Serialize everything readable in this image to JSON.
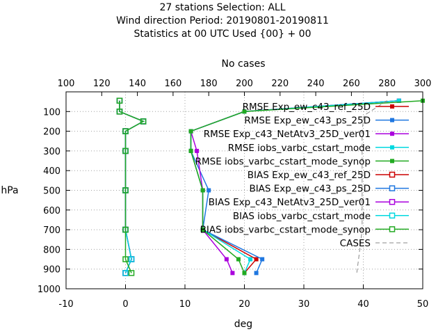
{
  "chart_data": {
    "type": "line",
    "title_lines": [
      "27 stations Selection: ALL",
      "Wind direction  Period: 20190801-20190811",
      "Statistics at 00 UTC  Used {00} + 00"
    ],
    "xlabel": "deg",
    "ylabel": "hPa",
    "x2label": "No cases",
    "xlim": [
      -10,
      50
    ],
    "ylim": [
      1000,
      0
    ],
    "x2lim": [
      100,
      300
    ],
    "x_ticks": [
      "-10",
      "0",
      "10",
      "20",
      "30",
      "40",
      "50"
    ],
    "y_ticks": [
      "100",
      "200",
      "300",
      "400",
      "500",
      "600",
      "700",
      "800",
      "900",
      "1000"
    ],
    "x2_ticks": [
      "100",
      "120",
      "140",
      "160",
      "180",
      "200",
      "220",
      "240",
      "260",
      "280",
      "300"
    ],
    "grid": true,
    "legend_position": "top-right",
    "series": [
      {
        "name": "RMSE Exp_ew_c43_ref_25D",
        "stat": "rmse",
        "color": "#cc0000",
        "marker": "filled-square",
        "points": [
          [
            46,
            45
          ],
          [
            20,
            100
          ],
          [
            11,
            200
          ],
          [
            11,
            300
          ],
          [
            13,
            500
          ],
          [
            13,
            700
          ],
          [
            22,
            850
          ],
          [
            20,
            920
          ]
        ]
      },
      {
        "name": "RMSE Exp_ew_c43_ps_25D",
        "stat": "rmse",
        "color": "#1f77e0",
        "marker": "filled-square",
        "points": [
          [
            46,
            45
          ],
          [
            20,
            100
          ],
          [
            11,
            200
          ],
          [
            11,
            300
          ],
          [
            14,
            500
          ],
          [
            13,
            700
          ],
          [
            23,
            850
          ],
          [
            22,
            920
          ]
        ]
      },
      {
        "name": "RMSE Exp_c43_NetAtv3_25D_ver01",
        "stat": "rmse",
        "color": "#aa00dd",
        "marker": "filled-square",
        "points": [
          [
            46,
            45
          ],
          [
            20,
            100
          ],
          [
            11,
            200
          ],
          [
            12,
            300
          ],
          [
            13,
            500
          ],
          [
            13,
            700
          ],
          [
            17,
            850
          ],
          [
            18,
            920
          ]
        ]
      },
      {
        "name": "RMSE iobs_varbc_cstart_mode",
        "stat": "rmse",
        "color": "#00d8e0",
        "marker": "filled-square",
        "points": [
          [
            46,
            45
          ],
          [
            20,
            100
          ],
          [
            11,
            200
          ],
          [
            11,
            300
          ],
          [
            13,
            500
          ],
          [
            13,
            700
          ],
          [
            21,
            850
          ],
          [
            20,
            920
          ]
        ]
      },
      {
        "name": "RMSE iobs_varbc_cstart_mode_synop",
        "stat": "rmse",
        "color": "#22aa22",
        "marker": "filled-square",
        "points": [
          [
            50,
            45
          ],
          [
            20,
            100
          ],
          [
            11,
            200
          ],
          [
            11,
            300
          ],
          [
            13,
            500
          ],
          [
            13,
            700
          ],
          [
            19,
            850
          ],
          [
            20,
            920
          ]
        ]
      },
      {
        "name": "BIAS Exp_ew_c43_ref_25D",
        "stat": "bias",
        "color": "#cc0000",
        "marker": "open-square",
        "points": [
          [
            -1,
            45
          ],
          [
            -1,
            100
          ],
          [
            3,
            150
          ],
          [
            0,
            200
          ],
          [
            0,
            300
          ],
          [
            0,
            500
          ],
          [
            0,
            700
          ],
          [
            1,
            850
          ],
          [
            0,
            920
          ]
        ]
      },
      {
        "name": "BIAS Exp_ew_c43_ps_25D",
        "stat": "bias",
        "color": "#1f77e0",
        "marker": "open-square",
        "points": [
          [
            -1,
            45
          ],
          [
            -1,
            100
          ],
          [
            3,
            150
          ],
          [
            0,
            200
          ],
          [
            0,
            300
          ],
          [
            0,
            500
          ],
          [
            0,
            700
          ],
          [
            1,
            850
          ],
          [
            0,
            920
          ]
        ]
      },
      {
        "name": "BIAS Exp_c43_NetAtv3_25D_ver01",
        "stat": "bias",
        "color": "#aa00dd",
        "marker": "open-square",
        "points": [
          [
            -1,
            45
          ],
          [
            -1,
            100
          ],
          [
            3,
            150
          ],
          [
            0,
            200
          ],
          [
            0,
            300
          ],
          [
            0,
            500
          ],
          [
            0,
            700
          ],
          [
            1,
            850
          ],
          [
            0,
            920
          ]
        ]
      },
      {
        "name": "BIAS iobs_varbc_cstart_mode",
        "stat": "bias",
        "color": "#00d8e0",
        "marker": "open-square",
        "points": [
          [
            -1,
            45
          ],
          [
            -1,
            100
          ],
          [
            3,
            150
          ],
          [
            0,
            200
          ],
          [
            0,
            300
          ],
          [
            0,
            500
          ],
          [
            0,
            700
          ],
          [
            1,
            850
          ],
          [
            0,
            920
          ]
        ]
      },
      {
        "name": "BIAS iobs_varbc_cstart_mode_synop",
        "stat": "bias",
        "color": "#22aa22",
        "marker": "open-square",
        "points": [
          [
            -1,
            45
          ],
          [
            -1,
            100
          ],
          [
            3,
            150
          ],
          [
            0,
            200
          ],
          [
            0,
            300
          ],
          [
            0,
            500
          ],
          [
            0,
            700
          ],
          [
            0,
            850
          ],
          [
            1,
            920
          ]
        ]
      },
      {
        "name": "CASES",
        "stat": "cases",
        "color": "#888888",
        "marker": "none",
        "axis": "x2",
        "points": [
          [
            280,
            45
          ],
          [
            267,
            120
          ],
          [
            266,
            200
          ],
          [
            266,
            300
          ],
          [
            266,
            500
          ],
          [
            266,
            700
          ],
          [
            264,
            850
          ],
          [
            263,
            920
          ]
        ]
      }
    ]
  }
}
